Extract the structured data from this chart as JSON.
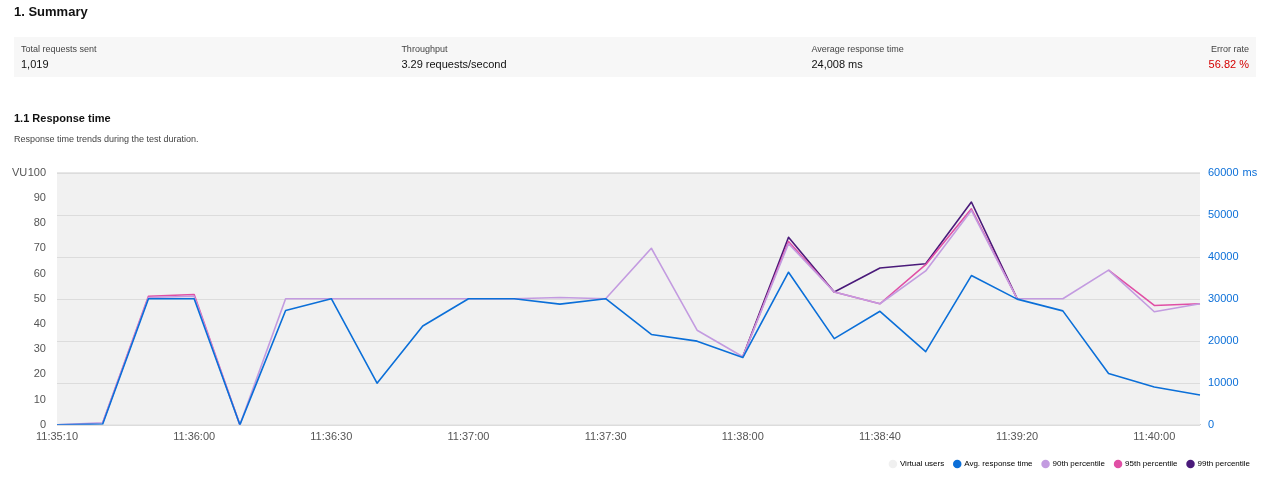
{
  "chart_data": [
    {
      "type": "other",
      "title": "1. Summary",
      "annotations": [
        "Total requests sent",
        "1,019",
        "Throughput",
        "3.29 requests/second",
        "Average response time",
        "24,008 ms",
        "Error rate",
        "56.82 %"
      ]
    },
    {
      "type": "line",
      "title": "1.1 Response time",
      "subtitle": "Response time trends during the test duration.",
      "ylabel": "VU",
      "y2label": "ms",
      "categories": [
        "11:35:10",
        null,
        null,
        "11:36:00",
        null,
        null,
        "11:36:30",
        null,
        null,
        "11:37:00",
        null,
        null,
        "11:37:30",
        null,
        null,
        "11:38:00",
        null,
        null,
        "11:38:40",
        null,
        null,
        "11:39:20",
        null,
        null,
        "11:40:00",
        null
      ],
      "series": [
        {
          "name": "Virtual users",
          "color": "#f0f0f0",
          "values": [
            null,
            null,
            null,
            null,
            null,
            null,
            null,
            null,
            null,
            null,
            null,
            null,
            null,
            null,
            null,
            null,
            null,
            null,
            null,
            null,
            null,
            null,
            null,
            null,
            null,
            null
          ]
        },
        {
          "name": "Avg. response time",
          "axis": "y2",
          "color": "#0b6fd8",
          "values": [
            0,
            200,
            30000,
            30000,
            0,
            27200,
            30000,
            9900,
            23500,
            30000,
            30000,
            28700,
            30000,
            21500,
            19900,
            16000,
            36300,
            20500,
            27000,
            17400,
            35500,
            29900,
            27100,
            12200,
            9000,
            7100
          ]
        },
        {
          "name": "90th percentile",
          "axis": "y2",
          "color": "#c39be0",
          "values": [
            0,
            500,
            30300,
            30600,
            0,
            30000,
            30000,
            30000,
            30000,
            30000,
            30000,
            30300,
            30000,
            42000,
            22500,
            16200,
            43100,
            31600,
            28800,
            36600,
            51000,
            30000,
            30000,
            36800,
            26900,
            28800
          ]
        },
        {
          "name": "95th percentile",
          "axis": "y2",
          "color": "#e04fa5",
          "values": [
            null,
            500,
            30600,
            31000,
            0,
            null,
            null,
            null,
            null,
            null,
            null,
            null,
            null,
            null,
            null,
            16200,
            43600,
            31600,
            28800,
            38100,
            51400,
            30000,
            null,
            36800,
            28400,
            28800
          ]
        },
        {
          "name": "99th percentile",
          "axis": "y2",
          "color": "#4a1a7a",
          "values": [
            null,
            null,
            null,
            null,
            null,
            null,
            null,
            null,
            null,
            null,
            null,
            null,
            null,
            null,
            null,
            16200,
            44600,
            31600,
            37300,
            38300,
            53000,
            30000,
            null,
            null,
            null,
            null
          ]
        }
      ],
      "ylim": [
        0,
        100
      ],
      "yticks": [
        0,
        10,
        20,
        30,
        40,
        50,
        60,
        70,
        80,
        90,
        100
      ],
      "y2lim": [
        0,
        60000
      ],
      "y2ticks": [
        0,
        10000,
        20000,
        30000,
        40000,
        50000,
        60000
      ],
      "grid": "y",
      "legend": "bottom right",
      "marker": "none",
      "line_style": "solid"
    }
  ]
}
